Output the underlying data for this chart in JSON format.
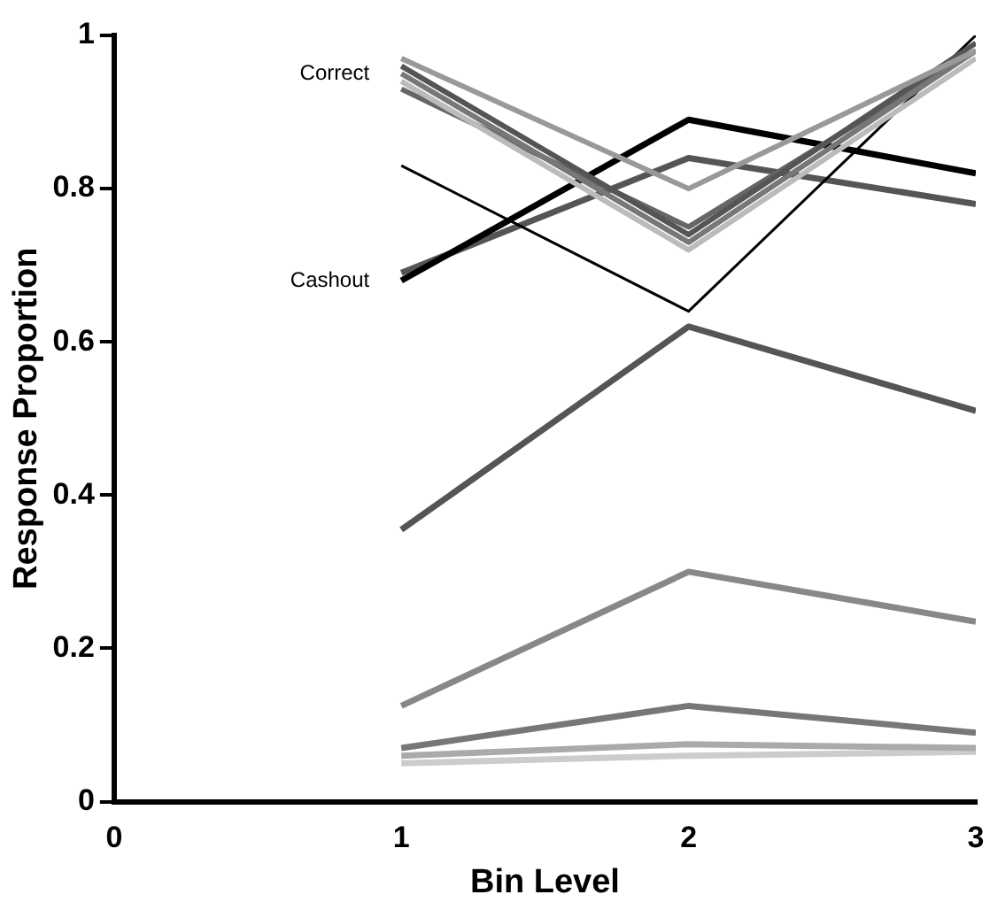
{
  "chart_data": {
    "type": "line",
    "xlabel": "Bin Level",
    "ylabel": "Response Proportion",
    "x": [
      1,
      2,
      3
    ],
    "series": [
      {
        "color": "#999999",
        "values": [
          0.97,
          0.8,
          0.98
        ]
      },
      {
        "color": "#555555",
        "values": [
          0.96,
          0.74,
          0.99
        ]
      },
      {
        "color": "#777777",
        "values": [
          0.95,
          0.73,
          0.98
        ]
      },
      {
        "color": "#bbbbbb",
        "values": [
          0.94,
          0.72,
          0.97
        ]
      },
      {
        "color": "#666666",
        "values": [
          0.93,
          0.75,
          0.98
        ]
      },
      {
        "color": "#000000",
        "values": [
          0.83,
          0.64,
          1.0
        ]
      },
      {
        "color": "#000000",
        "values": [
          0.68,
          0.89,
          0.82
        ]
      },
      {
        "color": "#555555",
        "values": [
          0.69,
          0.84,
          0.78
        ]
      },
      {
        "color": "#555555",
        "values": [
          0.355,
          0.62,
          0.51
        ]
      },
      {
        "color": "#888888",
        "values": [
          0.125,
          0.3,
          0.235
        ]
      },
      {
        "color": "#777777",
        "values": [
          0.07,
          0.125,
          0.09
        ]
      },
      {
        "color": "#aaaaaa",
        "values": [
          0.06,
          0.075,
          0.07
        ]
      },
      {
        "color": "#cccccc",
        "values": [
          0.05,
          0.06,
          0.065
        ]
      }
    ],
    "annotations": [
      {
        "text": "Correct",
        "x": 1,
        "y": 0.95
      },
      {
        "text": "Cashout",
        "x": 1,
        "y": 0.68
      }
    ],
    "xlim": [
      0,
      3
    ],
    "xticks": [
      0,
      1,
      2,
      3
    ],
    "ylim": [
      0,
      1
    ],
    "yticks": [
      0,
      0.2,
      0.4,
      0.6,
      0.8,
      1
    ],
    "grid": false,
    "legend": false,
    "marker": "none",
    "line_style": "solid"
  }
}
